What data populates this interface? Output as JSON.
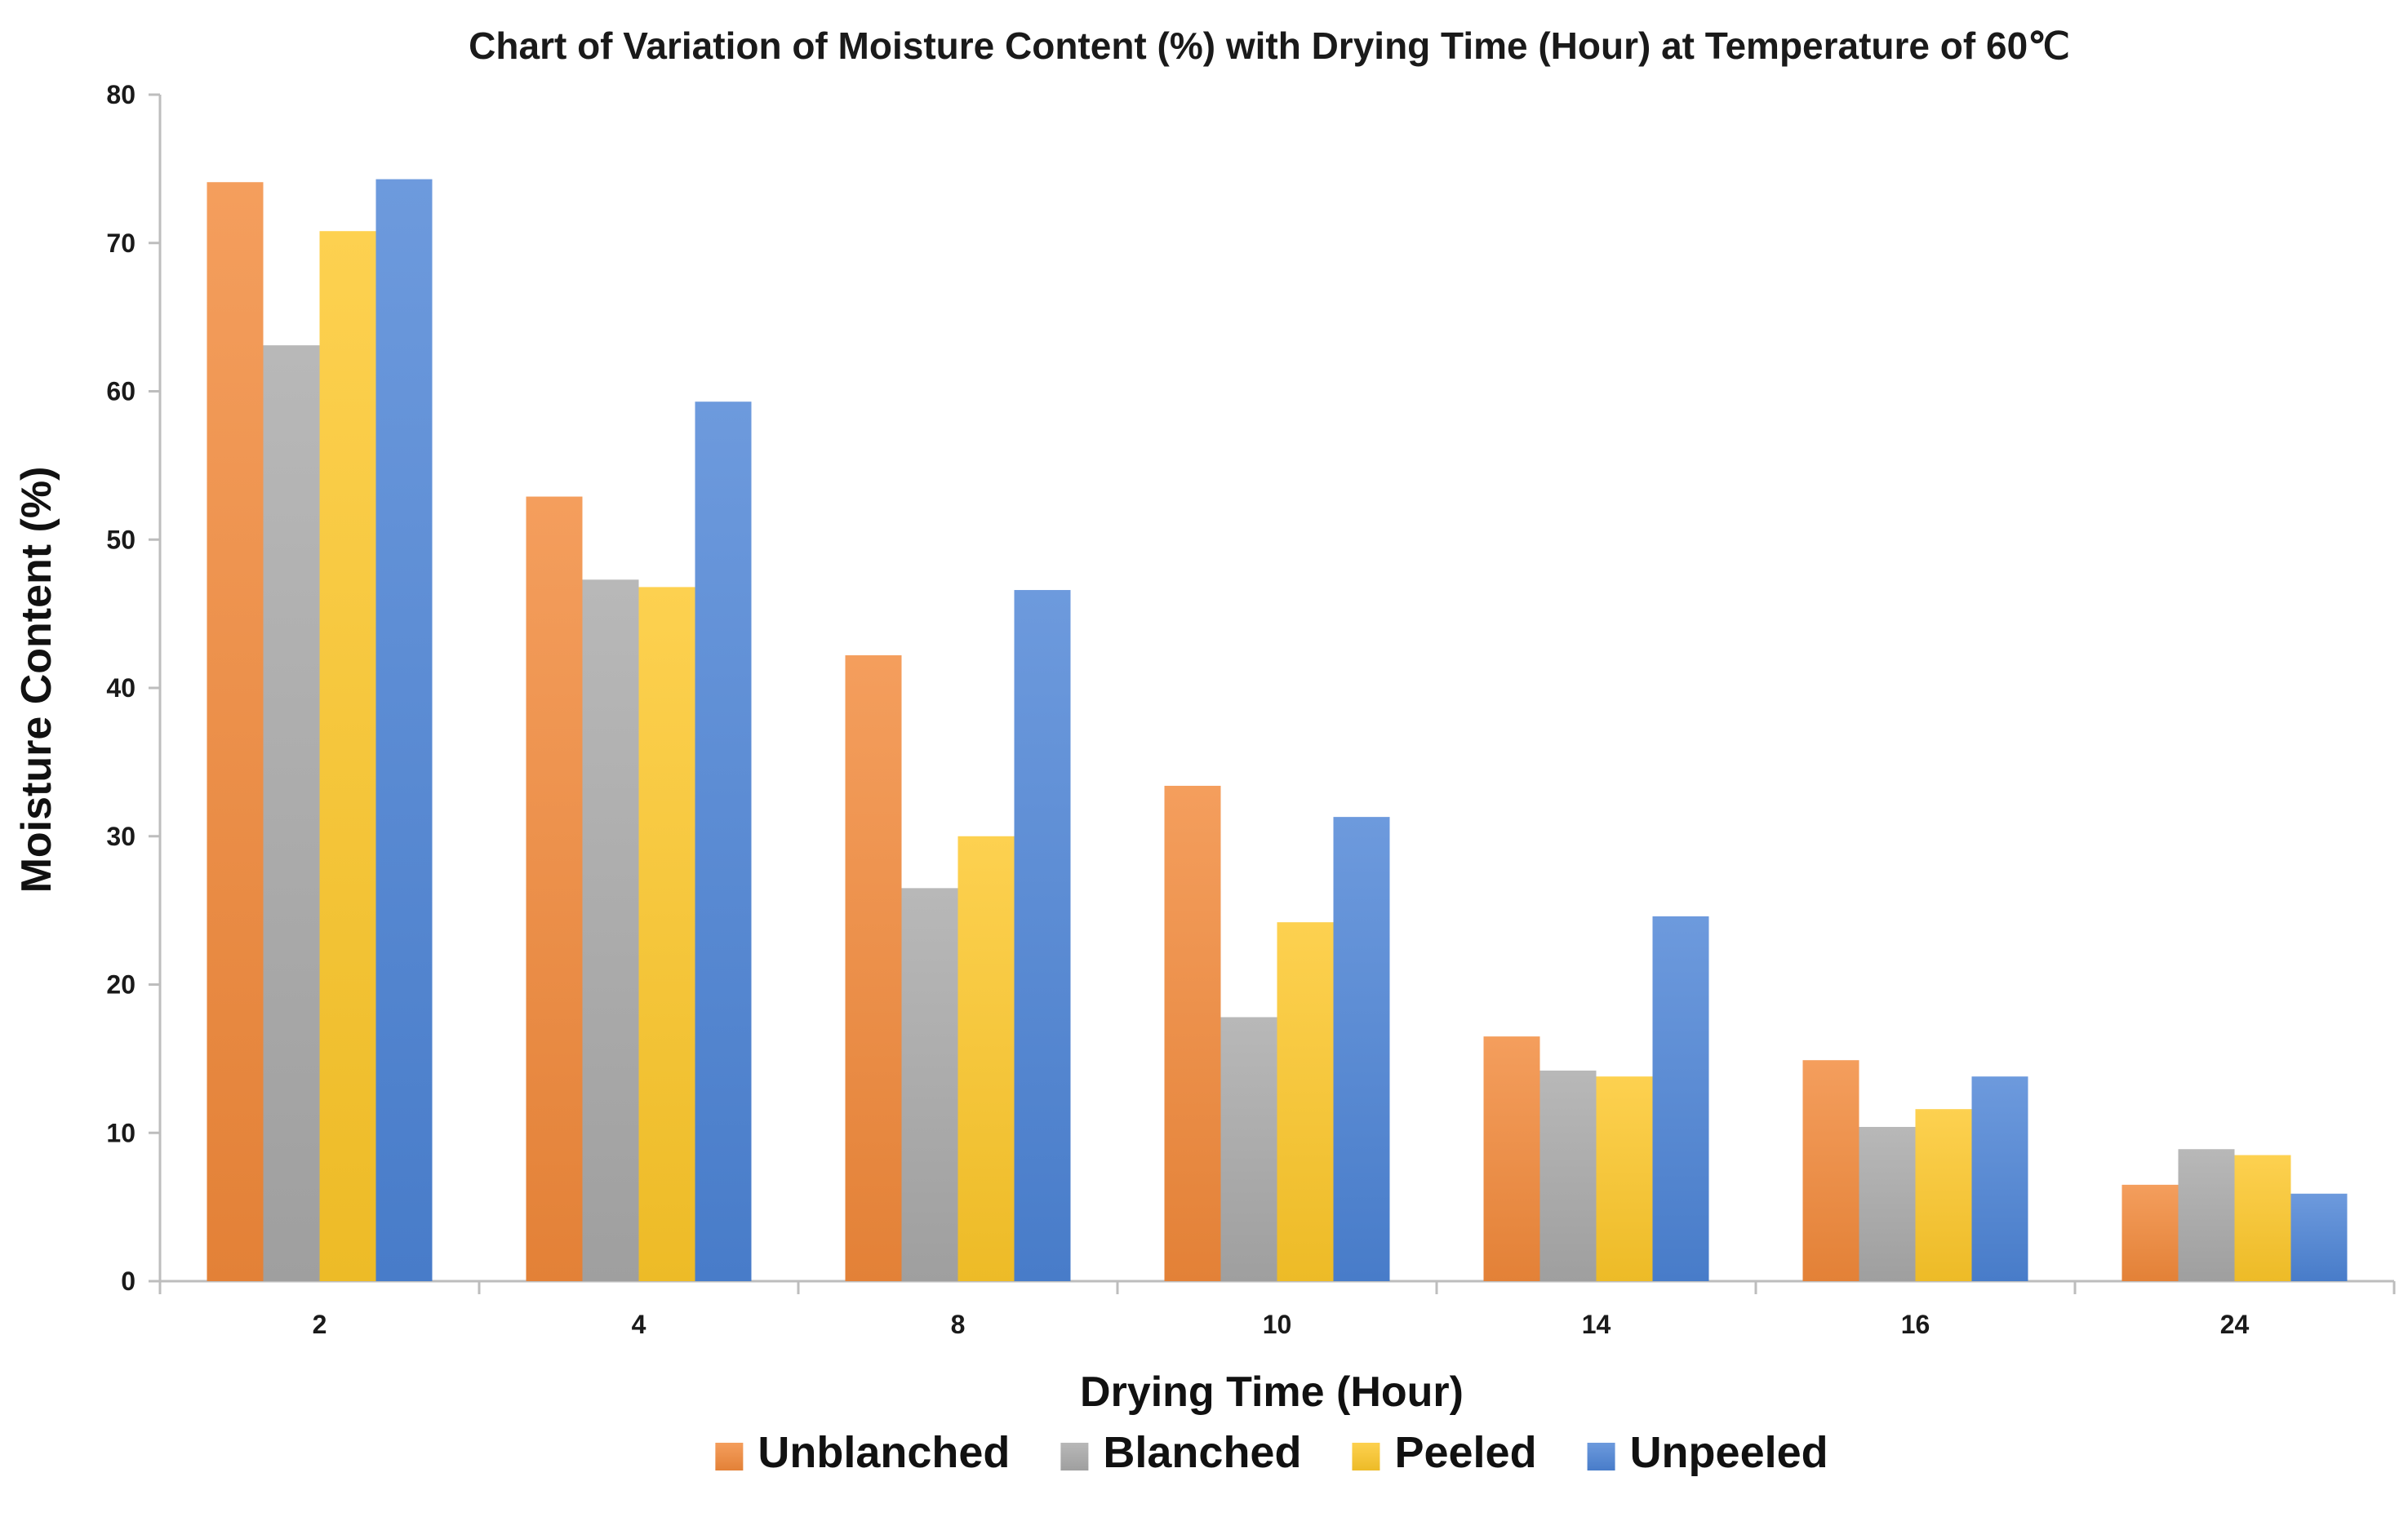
{
  "chart_data": {
    "type": "bar",
    "title": "Chart of Variation of Moisture Content (%) with Drying Time (Hour) at Temperature of 60℃",
    "xlabel": "Drying Time (Hour)",
    "ylabel": "Moisture Content (%)",
    "ylim": [
      0,
      80
    ],
    "yticks": [
      0,
      10,
      20,
      30,
      40,
      50,
      60,
      70,
      80
    ],
    "categories": [
      "2",
      "4",
      "8",
      "10",
      "14",
      "16",
      "24"
    ],
    "legend_position": "bottom",
    "series": [
      {
        "name": "Unblanched",
        "color": "#f2893a",
        "values": [
          74.1,
          52.9,
          42.2,
          33.4,
          16.5,
          14.9,
          6.5
        ]
      },
      {
        "name": "Blanched",
        "color": "#a9a9a9",
        "values": [
          63.1,
          47.3,
          26.5,
          17.8,
          14.2,
          10.4,
          8.9
        ]
      },
      {
        "name": "Peeled",
        "color": "#fcc72a",
        "values": [
          70.8,
          46.8,
          30.0,
          24.2,
          13.8,
          11.6,
          8.5
        ]
      },
      {
        "name": "Unpeeled",
        "color": "#4d84d6",
        "values": [
          74.3,
          59.3,
          46.6,
          31.3,
          24.6,
          13.8,
          5.9
        ]
      }
    ]
  }
}
